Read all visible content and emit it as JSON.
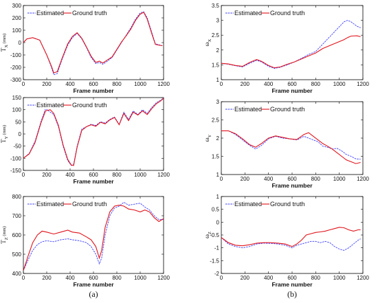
{
  "captions": [
    "(a)",
    "(b)"
  ],
  "chart_data": [
    {
      "type": "line",
      "xlabel": "Frame number",
      "ylabel": "T",
      "ylabel_sub": "X",
      "ylabel_unit": "(mm)",
      "xlim": [
        0,
        1200
      ],
      "ylim": [
        -300,
        300
      ],
      "xticks": [
        "0",
        "200",
        "400",
        "600",
        "800",
        "1000",
        "1200"
      ],
      "yticks": [
        "-300",
        "-200",
        "-100",
        "0",
        "100",
        "200",
        "300"
      ],
      "grid": false,
      "legend": "top-left",
      "colors": {
        "estimated": "#3b3bff",
        "truth": "#e0121a"
      },
      "series": [
        {
          "name": "Estimated",
          "style": "dashed",
          "x": [
            0,
            30,
            80,
            140,
            200,
            240,
            260,
            290,
            330,
            380,
            420,
            460,
            500,
            540,
            580,
            620,
            650,
            680,
            720,
            760,
            800,
            840,
            880,
            920,
            960,
            1000,
            1030,
            1060,
            1100,
            1130,
            1170,
            1190
          ],
          "y": [
            0,
            30,
            40,
            20,
            -100,
            -200,
            -260,
            -250,
            -140,
            -20,
            40,
            75,
            30,
            -40,
            -120,
            -170,
            -160,
            -175,
            -150,
            -120,
            -60,
            0,
            60,
            120,
            190,
            240,
            250,
            200,
            80,
            -10,
            -20,
            -25
          ]
        },
        {
          "name": "Ground truth",
          "style": "solid",
          "x": [
            0,
            30,
            80,
            140,
            200,
            240,
            260,
            290,
            330,
            380,
            420,
            460,
            500,
            540,
            580,
            620,
            650,
            680,
            720,
            760,
            800,
            840,
            880,
            920,
            960,
            1000,
            1030,
            1060,
            1100,
            1130,
            1170,
            1190
          ],
          "y": [
            0,
            30,
            40,
            20,
            -100,
            -190,
            -245,
            -235,
            -130,
            -10,
            50,
            80,
            35,
            -35,
            -110,
            -160,
            -150,
            -165,
            -140,
            -115,
            -55,
            5,
            55,
            110,
            180,
            230,
            245,
            190,
            70,
            -15,
            -22,
            -25
          ]
        }
      ]
    },
    {
      "type": "line",
      "xlabel": "Frame number",
      "ylabel": "ω",
      "ylabel_sub": "X",
      "ylabel_unit": "",
      "xlim": [
        0,
        1200
      ],
      "ylim": [
        1,
        3.5
      ],
      "xticks": [
        "0",
        "200",
        "400",
        "600",
        "800",
        "1000",
        "1200"
      ],
      "yticks": [
        "1",
        "1.5",
        "2",
        "2.5",
        "3",
        "3.5"
      ],
      "grid": false,
      "legend": "top-left",
      "colors": {
        "estimated": "#3b3bff",
        "truth": "#e0121a"
      },
      "series": [
        {
          "name": "Estimated",
          "style": "dashed",
          "x": [
            0,
            60,
            120,
            180,
            240,
            300,
            340,
            400,
            450,
            500,
            560,
            620,
            680,
            740,
            800,
            860,
            920,
            980,
            1040,
            1070,
            1100,
            1150,
            1180
          ],
          "y": [
            1.55,
            1.52,
            1.47,
            1.43,
            1.55,
            1.65,
            1.6,
            1.45,
            1.38,
            1.42,
            1.5,
            1.6,
            1.72,
            1.85,
            1.95,
            2.2,
            2.45,
            2.7,
            2.95,
            3.0,
            2.95,
            2.8,
            2.75
          ]
        },
        {
          "name": "Ground truth",
          "style": "solid",
          "x": [
            0,
            60,
            120,
            180,
            240,
            300,
            340,
            400,
            450,
            500,
            560,
            620,
            680,
            740,
            800,
            860,
            920,
            980,
            1040,
            1070,
            1100,
            1150,
            1180
          ],
          "y": [
            1.55,
            1.53,
            1.48,
            1.45,
            1.58,
            1.68,
            1.62,
            1.48,
            1.4,
            1.43,
            1.52,
            1.6,
            1.7,
            1.8,
            1.9,
            2.05,
            2.15,
            2.25,
            2.35,
            2.42,
            2.47,
            2.48,
            2.45
          ]
        }
      ]
    },
    {
      "type": "line",
      "xlabel": "Frame number",
      "ylabel": "T",
      "ylabel_sub": "Y",
      "ylabel_unit": "(mm)",
      "xlim": [
        0,
        1200
      ],
      "ylim": [
        -150,
        150
      ],
      "xticks": [
        "0",
        "200",
        "400",
        "600",
        "800",
        "1000",
        "1200"
      ],
      "yticks": [
        "-150",
        "-100",
        "-50",
        "0",
        "50",
        "100",
        "150"
      ],
      "grid": false,
      "legend": "top-left",
      "colors": {
        "estimated": "#3b3bff",
        "truth": "#e0121a"
      },
      "series": [
        {
          "name": "Estimated",
          "style": "dashed",
          "x": [
            0,
            50,
            100,
            150,
            190,
            230,
            260,
            300,
            340,
            380,
            410,
            430,
            460,
            500,
            540,
            580,
            620,
            660,
            700,
            740,
            780,
            820,
            860,
            900,
            940,
            980,
            1020,
            1060,
            1100,
            1140,
            1180,
            1200
          ],
          "y": [
            -100,
            -80,
            -30,
            50,
            105,
            90,
            80,
            30,
            -50,
            -110,
            -130,
            -125,
            -50,
            20,
            30,
            40,
            35,
            50,
            45,
            60,
            70,
            40,
            90,
            60,
            95,
            80,
            100,
            85,
            110,
            130,
            140,
            150
          ]
        },
        {
          "name": "Ground truth",
          "style": "solid",
          "x": [
            0,
            50,
            100,
            150,
            190,
            230,
            260,
            300,
            340,
            380,
            410,
            430,
            460,
            500,
            540,
            580,
            620,
            660,
            700,
            740,
            780,
            820,
            860,
            900,
            940,
            980,
            1020,
            1060,
            1100,
            1140,
            1180,
            1200
          ],
          "y": [
            -100,
            -82,
            -35,
            45,
            95,
            100,
            85,
            35,
            -45,
            -105,
            -128,
            -130,
            -55,
            15,
            30,
            38,
            32,
            48,
            42,
            58,
            68,
            38,
            85,
            55,
            90,
            78,
            95,
            80,
            105,
            125,
            138,
            148
          ]
        }
      ]
    },
    {
      "type": "line",
      "xlabel": "Frame number",
      "ylabel": "ω",
      "ylabel_sub": "Y",
      "ylabel_unit": "",
      "xlim": [
        0,
        1200
      ],
      "ylim": [
        1,
        3
      ],
      "xticks": [
        "0",
        "200",
        "400",
        "600",
        "800",
        "1000",
        "1200"
      ],
      "yticks": [
        "1",
        "1.5",
        "2",
        "2.5",
        "3"
      ],
      "grid": false,
      "legend": "top-left",
      "colors": {
        "estimated": "#3b3bff",
        "truth": "#e0121a"
      },
      "series": [
        {
          "name": "Estimated",
          "style": "dashed",
          "x": [
            0,
            60,
            120,
            180,
            240,
            290,
            340,
            400,
            460,
            520,
            580,
            640,
            700,
            740,
            780,
            820,
            860,
            900,
            940,
            980,
            1020,
            1060,
            1100,
            1140,
            1180
          ],
          "y": [
            2.2,
            2.2,
            2.1,
            1.95,
            1.8,
            1.7,
            1.8,
            1.98,
            2.05,
            2.0,
            1.98,
            1.95,
            2.05,
            2.0,
            1.95,
            1.9,
            1.78,
            1.75,
            1.7,
            1.72,
            1.65,
            1.55,
            1.5,
            1.43,
            1.42
          ]
        },
        {
          "name": "Ground truth",
          "style": "solid",
          "x": [
            0,
            60,
            120,
            180,
            240,
            290,
            340,
            400,
            460,
            520,
            580,
            640,
            700,
            740,
            780,
            820,
            860,
            900,
            940,
            980,
            1020,
            1060,
            1100,
            1140,
            1180
          ],
          "y": [
            2.2,
            2.2,
            2.12,
            1.98,
            1.82,
            1.75,
            1.85,
            2.0,
            2.06,
            2.02,
            1.98,
            1.96,
            2.1,
            2.15,
            2.05,
            1.95,
            1.85,
            1.78,
            1.7,
            1.6,
            1.5,
            1.4,
            1.35,
            1.3,
            1.33
          ]
        }
      ]
    },
    {
      "type": "line",
      "xlabel": "Frame number",
      "ylabel": "T",
      "ylabel_sub": "Z",
      "ylabel_unit": "(mm)",
      "xlim": [
        0,
        1200
      ],
      "ylim": [
        400,
        800
      ],
      "xticks": [
        "0",
        "200",
        "400",
        "600",
        "800",
        "1000",
        "1200"
      ],
      "yticks": [
        "400",
        "500",
        "600",
        "700",
        "800"
      ],
      "grid": false,
      "legend": "top-left",
      "colors": {
        "estimated": "#3b3bff",
        "truth": "#e0121a"
      },
      "series": [
        {
          "name": "Estimated",
          "style": "dashed",
          "x": [
            0,
            40,
            80,
            120,
            160,
            200,
            260,
            320,
            380,
            420,
            480,
            540,
            580,
            620,
            650,
            670,
            700,
            740,
            780,
            820,
            860,
            900,
            950,
            1000,
            1040,
            1080,
            1120,
            1160,
            1200
          ],
          "y": [
            415,
            470,
            520,
            550,
            565,
            570,
            565,
            575,
            580,
            575,
            570,
            560,
            540,
            500,
            450,
            480,
            600,
            700,
            740,
            750,
            770,
            755,
            760,
            765,
            745,
            730,
            700,
            680,
            680
          ]
        },
        {
          "name": "Ground truth",
          "style": "solid",
          "x": [
            0,
            40,
            80,
            120,
            160,
            200,
            260,
            320,
            380,
            420,
            480,
            540,
            580,
            620,
            650,
            670,
            700,
            740,
            780,
            820,
            860,
            900,
            950,
            1000,
            1040,
            1080,
            1120,
            1160,
            1200
          ],
          "y": [
            415,
            490,
            560,
            600,
            620,
            615,
            605,
            615,
            625,
            615,
            610,
            590,
            575,
            540,
            480,
            520,
            640,
            720,
            750,
            755,
            750,
            735,
            730,
            720,
            730,
            720,
            690,
            670,
            685
          ]
        }
      ]
    },
    {
      "type": "line",
      "xlabel": "Frame number",
      "ylabel": "ω",
      "ylabel_sub": "Z",
      "ylabel_unit": "",
      "xlim": [
        0,
        1200
      ],
      "ylim": [
        -2,
        1
      ],
      "xticks": [
        "0",
        "200",
        "400",
        "600",
        "800",
        "1000",
        "1200"
      ],
      "yticks": [
        "-2",
        "-1.5",
        "-1",
        "-0.5",
        "0",
        "0.5",
        "1"
      ],
      "grid": false,
      "legend": "top-left",
      "colors": {
        "estimated": "#3b3bff",
        "truth": "#e0121a"
      },
      "series": [
        {
          "name": "Estimated",
          "style": "dashed",
          "x": [
            0,
            60,
            120,
            180,
            240,
            300,
            360,
            420,
            480,
            540,
            600,
            640,
            680,
            720,
            760,
            800,
            840,
            880,
            920,
            960,
            1000,
            1040,
            1080,
            1120,
            1160,
            1180
          ],
          "y": [
            -0.6,
            -0.85,
            -0.95,
            -1.0,
            -0.95,
            -0.85,
            -0.82,
            -0.83,
            -0.85,
            -0.9,
            -1.0,
            -0.9,
            -0.85,
            -0.8,
            -0.75,
            -0.75,
            -0.8,
            -0.75,
            -0.8,
            -0.95,
            -1.05,
            -1.1,
            -1.0,
            -0.85,
            -0.7,
            -0.65
          ]
        },
        {
          "name": "Ground truth",
          "style": "solid",
          "x": [
            0,
            60,
            120,
            180,
            240,
            300,
            360,
            420,
            480,
            540,
            600,
            640,
            680,
            720,
            760,
            800,
            840,
            880,
            920,
            960,
            1000,
            1040,
            1080,
            1120,
            1160,
            1180
          ],
          "y": [
            -0.6,
            -0.8,
            -0.9,
            -0.92,
            -0.88,
            -0.82,
            -0.8,
            -0.8,
            -0.82,
            -0.85,
            -0.95,
            -0.85,
            -0.7,
            -0.5,
            -0.45,
            -0.4,
            -0.38,
            -0.35,
            -0.3,
            -0.25,
            -0.2,
            -0.22,
            -0.3,
            -0.35,
            -0.3,
            -0.3
          ]
        }
      ]
    }
  ]
}
